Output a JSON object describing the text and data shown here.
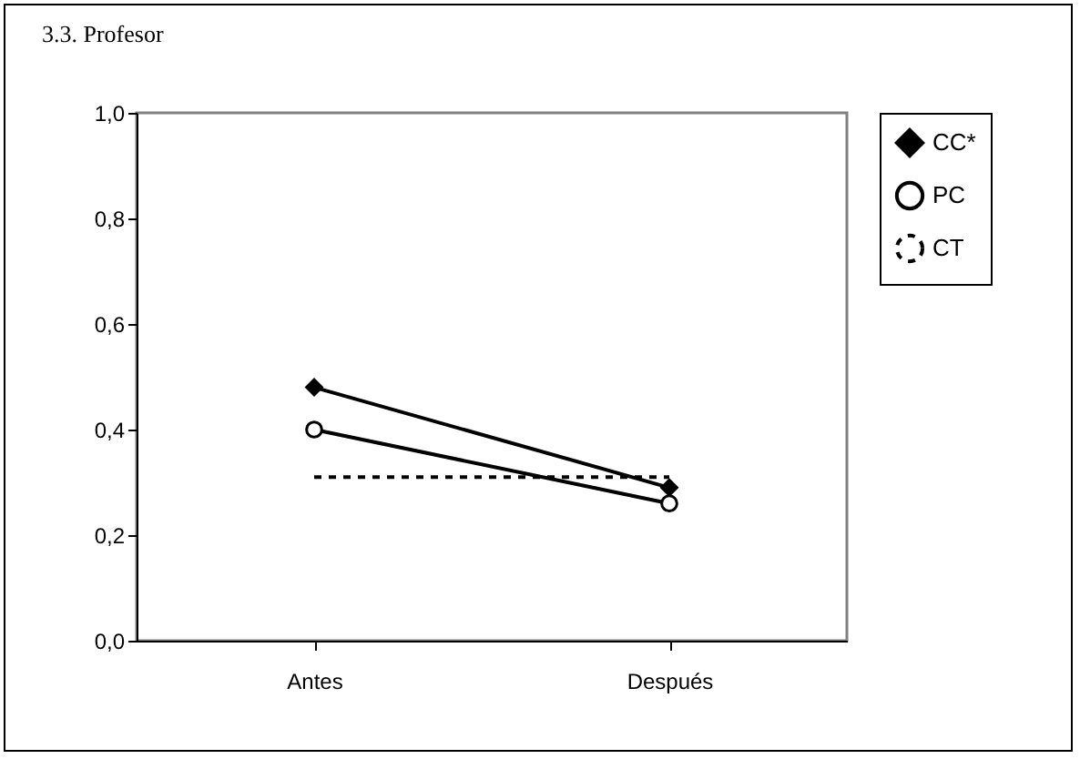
{
  "chart_data": {
    "type": "line",
    "title": "3.3. Profesor",
    "categories": [
      "Antes",
      "Después"
    ],
    "series": [
      {
        "name": "CC*",
        "color": "#000000",
        "values": [
          0.48,
          0.29
        ],
        "marker": "diamond",
        "line_style": "solid"
      },
      {
        "name": "PC",
        "color": "#000000",
        "values": [
          0.4,
          0.26
        ],
        "marker": "circle",
        "line_style": "solid"
      },
      {
        "name": "CT",
        "color": "#000000",
        "values": [
          0.31,
          0.31
        ],
        "marker": "none",
        "line_style": "dashed"
      }
    ],
    "ylim": [
      0,
      1
    ],
    "yticks": [
      {
        "value": 0,
        "label": "0,0"
      },
      {
        "value": 0.2,
        "label": "0,2"
      },
      {
        "value": 0.4,
        "label": "0,4"
      },
      {
        "value": 0.6,
        "label": "0,6"
      },
      {
        "value": 0.8,
        "label": "0,8"
      },
      {
        "value": 1,
        "label": "1,0"
      }
    ],
    "grid": false,
    "legend": "right"
  }
}
